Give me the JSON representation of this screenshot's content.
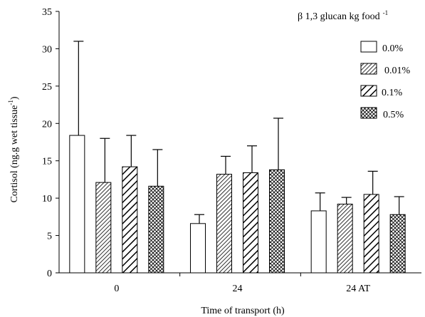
{
  "chart_data": {
    "type": "bar",
    "categories": [
      "0",
      "24",
      "24 AT"
    ],
    "series": [
      {
        "name": "0.0%",
        "pattern": "white",
        "values": [
          18.4,
          6.6,
          8.3
        ],
        "errors": [
          12.6,
          1.2,
          2.4
        ]
      },
      {
        "name": "0.01%",
        "pattern": "hatch-fine",
        "values": [
          12.1,
          13.2,
          9.2
        ],
        "errors": [
          5.9,
          2.4,
          0.9
        ]
      },
      {
        "name": "0.1%",
        "pattern": "hatch-bold",
        "values": [
          14.2,
          13.4,
          10.5
        ],
        "errors": [
          4.2,
          3.6,
          3.1
        ]
      },
      {
        "name": "0.5%",
        "pattern": "crosshatch",
        "values": [
          11.6,
          13.8,
          7.8
        ],
        "errors": [
          4.9,
          6.9,
          2.4
        ]
      }
    ],
    "xlabel": "Time of transport (h)",
    "ylabel": "Cortisol (ng.g wet tissue",
    "ylabel_superscript": "-1",
    "ylabel_suffix": ")",
    "ylim": [
      0,
      35
    ],
    "yticks": [
      0,
      5,
      10,
      15,
      20,
      25,
      30,
      35
    ],
    "grid": false,
    "legend": {
      "title": "β 1,3 glucan kg food",
      "title_superscript": "-1",
      "placement": "top-right"
    }
  }
}
